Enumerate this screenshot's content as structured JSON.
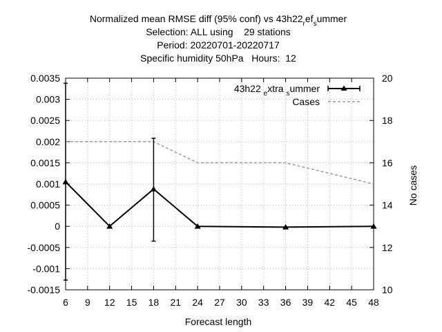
{
  "chart_data": {
    "type": "line",
    "title_lines": [
      "Normalized mean RMSE diff (95% conf) vs 43h22_ref_summer",
      "Selection: ALL using    29 stations",
      "Period: 20220701-20220717",
      "Specific humidity 50hPa   Hours:  12"
    ],
    "xlabel": "Forecast length",
    "ylabel": "",
    "y2label": "No cases",
    "x_ticks": [
      "6",
      "9",
      "12",
      "15",
      "18",
      "21",
      "24",
      "27",
      "30",
      "33",
      "36",
      "39",
      "42",
      "45",
      "48"
    ],
    "y_ticks": [
      "0.0035",
      "0.003",
      "0.0025",
      "0.002",
      "0.0015",
      "0.001",
      "0.0005",
      "0",
      "-0.0005",
      "-0.001",
      "-0.0015"
    ],
    "y2_ticks": [
      "20",
      "18",
      "16",
      "14",
      "12",
      "10"
    ],
    "xlim": [
      6,
      48
    ],
    "ylim": [
      -0.0015,
      0.0035
    ],
    "y2lim": [
      10,
      20
    ],
    "grid": true,
    "legend_position": "top-right",
    "series": [
      {
        "name": "43h22_extra_summer",
        "axis": "y",
        "color": "#000000",
        "marker": "triangle",
        "x": [
          6,
          12,
          18,
          24,
          36,
          48
        ],
        "y": [
          0.00105,
          0.0,
          0.00088,
          0.0,
          -2e-05,
          0.0
        ],
        "error_low": [
          -0.00127,
          null,
          -0.00035,
          null,
          null,
          null
        ],
        "error_high": [
          0.00338,
          null,
          0.00208,
          null,
          null,
          null
        ]
      },
      {
        "name": "Cases",
        "axis": "y2",
        "color": "#999999",
        "dashed": true,
        "x": [
          6,
          12,
          18,
          24,
          36,
          48
        ],
        "y": [
          17,
          17,
          17,
          16,
          16,
          15
        ]
      }
    ]
  }
}
